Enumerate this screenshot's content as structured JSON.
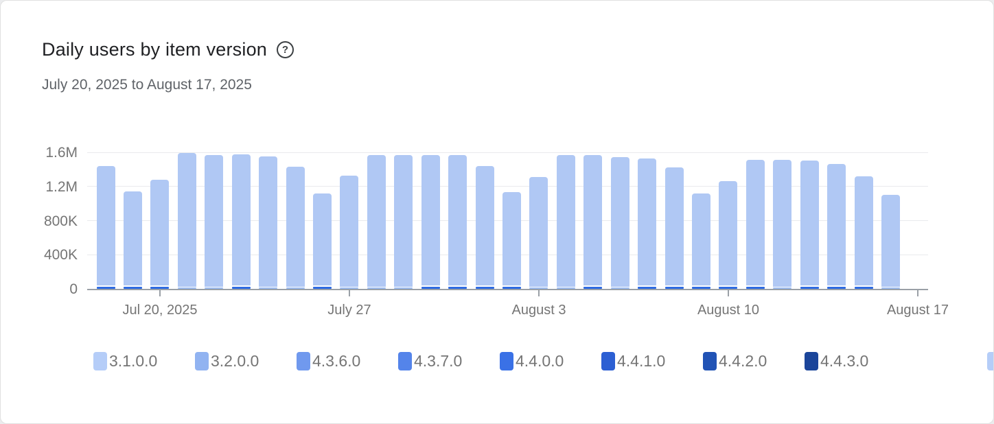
{
  "header": {
    "title": "Daily users by item version",
    "help_glyph": "?",
    "date_range": "July 20, 2025 to August 17, 2025"
  },
  "chart_data": {
    "type": "bar",
    "stacked": true,
    "title": "Daily users by item version",
    "xlabel": "",
    "ylabel": "",
    "ylim": [
      0,
      1600000
    ],
    "grid": true,
    "ytick_values": [
      0,
      400000,
      800000,
      1200000,
      1600000
    ],
    "ytick_labels": [
      "0",
      "400K",
      "800K",
      "1.2M",
      "1.6M"
    ],
    "xtick_labels": [
      "Jul 20, 2025",
      "July 27",
      "August 3",
      "August 10",
      "August 17"
    ],
    "xtick_day_index": [
      2,
      9,
      16,
      23,
      30
    ],
    "num_bars": 30,
    "totals": [
      1440000,
      1140000,
      1280000,
      1590000,
      1570000,
      1575000,
      1555000,
      1430000,
      1120000,
      1330000,
      1565000,
      1565000,
      1565000,
      1565000,
      1440000,
      1135000,
      1310000,
      1570000,
      1570000,
      1540000,
      1530000,
      1420000,
      1120000,
      1260000,
      1513000,
      1515000,
      1500000,
      1460000,
      1320000,
      1100000
    ],
    "bottom_accent": [
      "bright",
      "bright",
      "bright",
      "light",
      "light",
      "bright",
      "light",
      "light",
      "bright",
      "light",
      "light",
      "light",
      "bright",
      "bright",
      "bright",
      "bright",
      "light",
      "light",
      "bright",
      "light",
      "bright",
      "bright",
      "bright",
      "bright",
      "bright",
      "light",
      "bright",
      "bright",
      "bright",
      "light"
    ],
    "bottom_segment_values": {
      "bright": 28000,
      "light": 14000
    },
    "colors": {
      "bar_main": "#b0c8f4",
      "bottom_bright": "#2e6ae2",
      "bottom_light": "#9cbcf2"
    },
    "legend_position": "bottom",
    "legend": [
      {
        "label": "3.1.0.0",
        "color": "#b5cdf8"
      },
      {
        "label": "3.2.0.0",
        "color": "#91b3f1"
      },
      {
        "label": "4.3.6.0",
        "color": "#7099ee"
      },
      {
        "label": "4.3.7.0",
        "color": "#5484ea"
      },
      {
        "label": "4.4.0.0",
        "color": "#3a71e6"
      },
      {
        "label": "4.4.1.0",
        "color": "#2c5fd3"
      },
      {
        "label": "4.4.2.0",
        "color": "#2153b5"
      },
      {
        "label": "4.4.3.0",
        "color": "#1b459a"
      },
      {
        "label": "",
        "color": "#b5cdf8"
      }
    ]
  }
}
